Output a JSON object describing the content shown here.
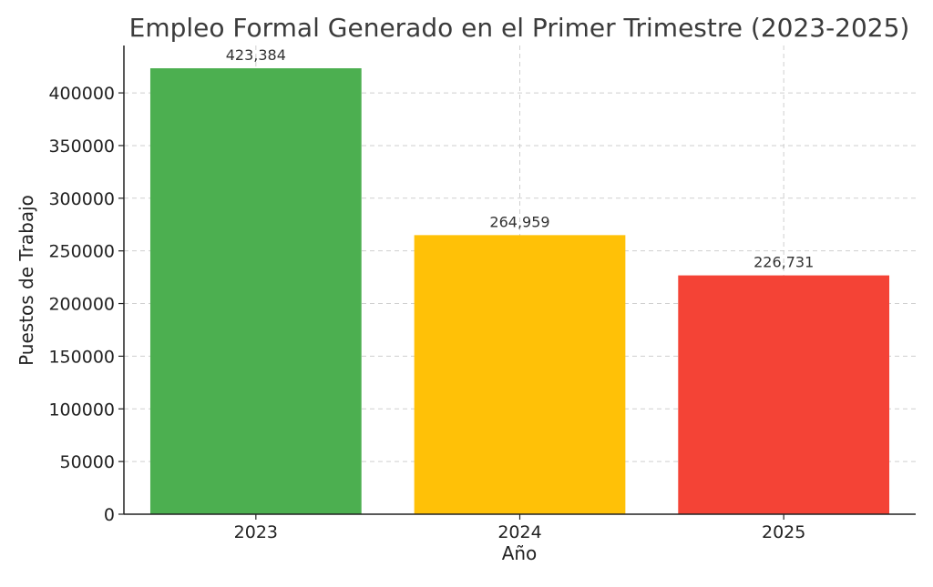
{
  "chart_data": {
    "type": "bar",
    "title": "Empleo Formal Generado en el Primer Trimestre (2023-2025)",
    "xlabel": "Año",
    "ylabel": "Puestos de Trabajo",
    "categories": [
      "2023",
      "2024",
      "2025"
    ],
    "values": [
      423384,
      264959,
      226731
    ],
    "data_labels": [
      "423,384",
      "264,959",
      "226,731"
    ],
    "bar_colors": [
      "#4caf50",
      "#ffc107",
      "#f44336"
    ],
    "ylim": [
      0,
      445000
    ],
    "yticks": [
      0,
      50000,
      100000,
      150000,
      200000,
      250000,
      300000,
      350000,
      400000
    ],
    "ytick_labels": [
      "0",
      "50000",
      "100000",
      "150000",
      "200000",
      "250000",
      "300000",
      "350000",
      "400000"
    ],
    "grid": true,
    "grid_style": "dashed"
  }
}
